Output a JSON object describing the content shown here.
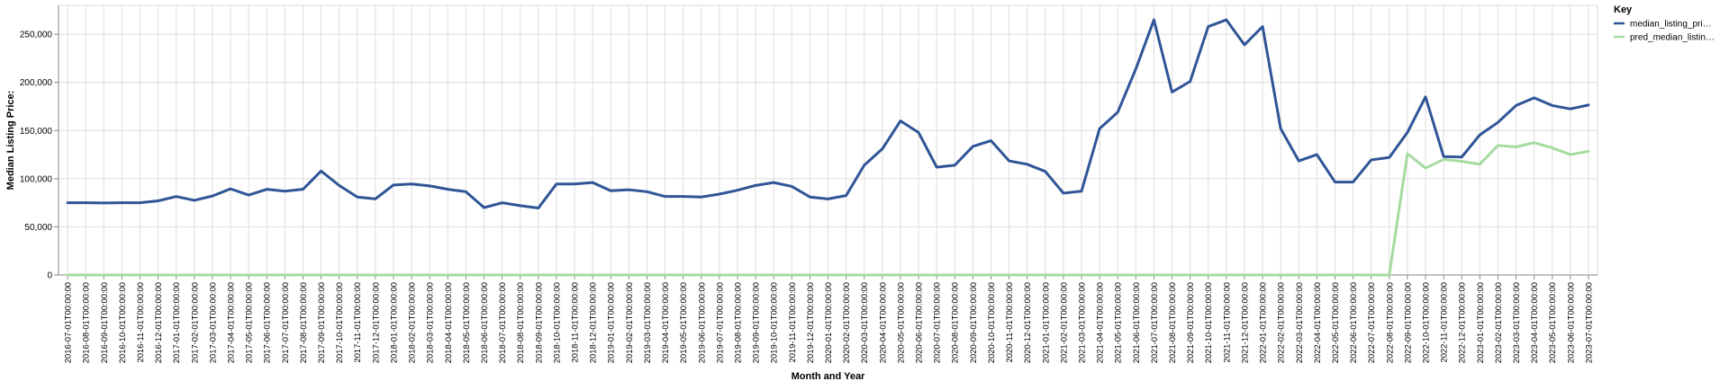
{
  "chart_data": {
    "type": "line",
    "xlabel": "Month and Year",
    "ylabel": "Median Listing Price:",
    "ylim": [
      0,
      280000
    ],
    "yticks": [
      0,
      50000,
      100000,
      150000,
      200000,
      250000
    ],
    "ytick_labels": [
      "0",
      "50,000",
      "100,000",
      "150,000",
      "200,000",
      "250,000"
    ],
    "grid": true,
    "legend_position": "top-right",
    "legend_title": "Key",
    "categories": [
      "2016-07-01T00:00:00",
      "2016-08-01T00:00:00",
      "2016-09-01T00:00:00",
      "2016-10-01T00:00:00",
      "2016-11-01T00:00:00",
      "2016-12-01T00:00:00",
      "2017-01-01T00:00:00",
      "2017-02-01T00:00:00",
      "2017-03-01T00:00:00",
      "2017-04-01T00:00:00",
      "2017-05-01T00:00:00",
      "2017-06-01T00:00:00",
      "2017-07-01T00:00:00",
      "2017-08-01T00:00:00",
      "2017-09-01T00:00:00",
      "2017-10-01T00:00:00",
      "2017-11-01T00:00:00",
      "2017-12-01T00:00:00",
      "2018-01-01T00:00:00",
      "2018-02-01T00:00:00",
      "2018-03-01T00:00:00",
      "2018-04-01T00:00:00",
      "2018-05-01T00:00:00",
      "2018-06-01T00:00:00",
      "2018-07-01T00:00:00",
      "2018-08-01T00:00:00",
      "2018-09-01T00:00:00",
      "2018-10-01T00:00:00",
      "2018-11-01T00:00:00",
      "2018-12-01T00:00:00",
      "2019-01-01T00:00:00",
      "2019-02-01T00:00:00",
      "2019-03-01T00:00:00",
      "2019-04-01T00:00:00",
      "2019-05-01T00:00:00",
      "2019-06-01T00:00:00",
      "2019-07-01T00:00:00",
      "2019-08-01T00:00:00",
      "2019-09-01T00:00:00",
      "2019-10-01T00:00:00",
      "2019-11-01T00:00:00",
      "2019-12-01T00:00:00",
      "2020-01-01T00:00:00",
      "2020-02-01T00:00:00",
      "2020-03-01T00:00:00",
      "2020-04-01T00:00:00",
      "2020-05-01T00:00:00",
      "2020-06-01T00:00:00",
      "2020-07-01T00:00:00",
      "2020-08-01T00:00:00",
      "2020-09-01T00:00:00",
      "2020-10-01T00:00:00",
      "2020-11-01T00:00:00",
      "2020-12-01T00:00:00",
      "2021-01-01T00:00:00",
      "2021-02-01T00:00:00",
      "2021-03-01T00:00:00",
      "2021-04-01T00:00:00",
      "2021-05-01T00:00:00",
      "2021-06-01T00:00:00",
      "2021-07-01T00:00:00",
      "2021-08-01T00:00:00",
      "2021-09-01T00:00:00",
      "2021-10-01T00:00:00",
      "2021-11-01T00:00:00",
      "2021-12-01T00:00:00",
      "2022-01-01T00:00:00",
      "2022-02-01T00:00:00",
      "2022-03-01T00:00:00",
      "2022-04-01T00:00:00",
      "2022-05-01T00:00:00",
      "2022-06-01T00:00:00",
      "2022-07-01T00:00:00",
      "2022-08-01T00:00:00",
      "2022-09-01T00:00:00",
      "2022-10-01T00:00:00",
      "2022-11-01T00:00:00",
      "2022-12-01T00:00:00",
      "2023-01-01T00:00:00",
      "2023-02-01T00:00:00",
      "2023-03-01T00:00:00",
      "2023-04-01T00:00:00",
      "2023-05-01T00:00:00",
      "2023-06-01T00:00:00",
      "2023-07-01T00:00:00"
    ],
    "series": [
      {
        "name": "median_listing_pri…",
        "color": "#2f5597",
        "values": [
          75000,
          75000,
          74800,
          75000,
          75000,
          77000,
          81500,
          77500,
          82000,
          89500,
          83000,
          89000,
          87000,
          89000,
          108000,
          93000,
          81000,
          79000,
          93500,
          94500,
          92500,
          89000,
          86500,
          70000,
          75000,
          72000,
          69500,
          94500,
          94500,
          96000,
          87500,
          88500,
          86500,
          81500,
          81500,
          81000,
          84000,
          88000,
          93000,
          96000,
          92000,
          81000,
          79000,
          82500,
          114000,
          131000,
          160000,
          148000,
          112000,
          114000,
          133500,
          139500,
          118500,
          115000,
          107500,
          85000,
          87000,
          152000,
          169000,
          214000,
          265000,
          190000,
          201000,
          258000,
          265000,
          239000,
          258000,
          152000,
          118500,
          125000,
          96500,
          96500,
          119500,
          122000,
          148000,
          185000,
          123000,
          122500,
          145500,
          158500,
          176000,
          184000,
          176000,
          172500,
          176500
        ]
      },
      {
        "name": "pred_median_listin…",
        "color": "#a6dba0",
        "values": [
          0,
          0,
          0,
          0,
          0,
          0,
          0,
          0,
          0,
          0,
          0,
          0,
          0,
          0,
          0,
          0,
          0,
          0,
          0,
          0,
          0,
          0,
          0,
          0,
          0,
          0,
          0,
          0,
          0,
          0,
          0,
          0,
          0,
          0,
          0,
          0,
          0,
          0,
          0,
          0,
          0,
          0,
          0,
          0,
          0,
          0,
          0,
          0,
          0,
          0,
          0,
          0,
          0,
          0,
          0,
          0,
          0,
          0,
          0,
          0,
          0,
          0,
          0,
          0,
          0,
          0,
          0,
          0,
          0,
          0,
          0,
          0,
          0,
          0,
          126000,
          111000,
          120000,
          118000,
          115000,
          134500,
          133000,
          137500,
          132000,
          125000,
          128500
        ]
      }
    ]
  }
}
